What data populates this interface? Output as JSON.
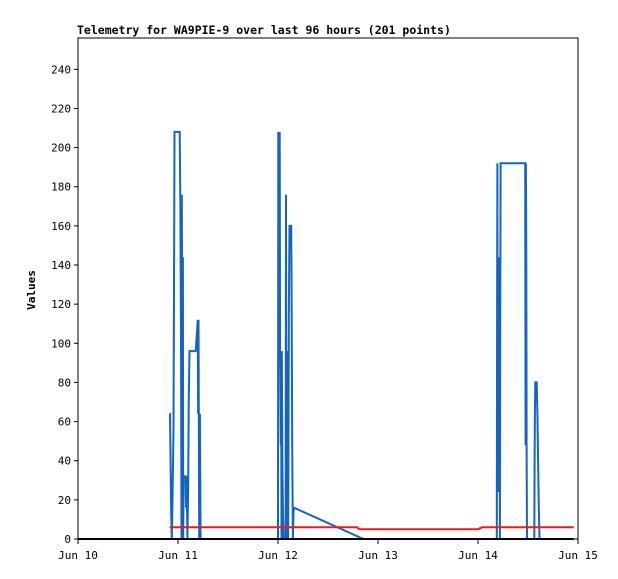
{
  "chart_data": {
    "type": "line",
    "title": "Telemetry for WA9PIE-9 over last 96 hours (201 points)",
    "xlabel": "",
    "ylabel": "Values",
    "xlim": [
      "2018-06-10T00:00",
      "2018-06-15T00:00"
    ],
    "ylim": [
      0,
      256
    ],
    "y_ticks": [
      0,
      20,
      40,
      60,
      80,
      100,
      120,
      140,
      160,
      180,
      200,
      220,
      240
    ],
    "x_ticks": [
      {
        "label": "Jun 10",
        "t": "2018-06-10T00:00"
      },
      {
        "label": "Jun 11",
        "t": "2018-06-11T00:00"
      },
      {
        "label": "Jun 12",
        "t": "2018-06-12T00:00"
      },
      {
        "label": "Jun 13",
        "t": "2018-06-13T00:00"
      },
      {
        "label": "Jun 14",
        "t": "2018-06-14T00:00"
      },
      {
        "label": "Jun 15",
        "t": "2018-06-15T00:00"
      }
    ],
    "grid": false,
    "legend": "none",
    "colors": {
      "blue": "#1565c0",
      "red": "#e02020",
      "black": "#000000",
      "frame": "#000000"
    },
    "series": [
      {
        "color": "#1565c0",
        "points": [
          [
            "2018-06-10T22:00",
            64
          ],
          [
            "2018-06-10T22:05",
            64
          ],
          [
            "2018-06-10T22:10",
            48
          ],
          [
            "2018-06-10T22:20",
            16
          ],
          [
            "2018-06-10T22:30",
            0
          ],
          [
            "2018-06-10T22:40",
            16
          ],
          [
            "2018-06-10T22:55",
            56
          ],
          [
            "2018-06-10T23:05",
            156
          ],
          [
            "2018-06-10T23:10",
            208
          ],
          [
            "2018-06-11T00:25",
            208
          ],
          [
            "2018-06-11T00:35",
            168
          ],
          [
            "2018-06-11T00:45",
            88
          ],
          [
            "2018-06-11T00:50",
            0
          ],
          [
            "2018-06-11T00:55",
            176
          ],
          [
            "2018-06-11T01:05",
            64
          ],
          [
            "2018-06-11T01:10",
            144
          ],
          [
            "2018-06-11T01:15",
            0
          ],
          [
            "2018-06-11T01:20",
            32
          ],
          [
            "2018-06-11T01:50",
            32
          ],
          [
            "2018-06-11T01:55",
            16
          ],
          [
            "2018-06-11T02:00",
            24
          ],
          [
            "2018-06-11T02:05",
            32
          ],
          [
            "2018-06-11T02:15",
            0
          ],
          [
            "2018-06-11T02:25",
            24
          ],
          [
            "2018-06-11T02:35",
            72
          ],
          [
            "2018-06-11T02:45",
            96
          ],
          [
            "2018-06-11T04:15",
            96
          ],
          [
            "2018-06-11T04:45",
            112
          ],
          [
            "2018-06-11T04:50",
            64
          ],
          [
            "2018-06-11T04:55",
            112
          ],
          [
            "2018-06-11T05:05",
            0
          ],
          [
            "2018-06-11T05:15",
            64
          ],
          [
            "2018-06-11T05:25",
            0
          ],
          [
            "2018-06-11T05:55",
            0
          ],
          [
            "2018-06-11T06:00",
            0
          ],
          [
            "2018-06-11T06:10",
            0
          ],
          [
            "2018-06-11T06:20",
            0
          ],
          [
            "2018-06-11T06:30",
            0
          ],
          [
            "2018-06-11T06:40",
            0
          ],
          [
            "2018-06-11T06:50",
            0
          ],
          [
            "2018-06-11T07:00",
            0
          ],
          [
            "2018-06-11T07:10",
            0
          ],
          [
            "2018-06-11T07:20",
            0
          ],
          [
            "2018-06-11T07:30",
            0
          ],
          [
            "2018-06-11T07:40",
            0
          ],
          [
            "2018-06-11T07:50",
            0
          ],
          [
            "2018-06-11T08:00",
            0
          ],
          [
            "2018-06-11T08:10",
            0
          ],
          [
            "2018-06-11T08:20",
            0
          ],
          [
            "2018-06-11T08:30",
            0
          ],
          [
            "2018-06-11T08:40",
            0
          ],
          [
            "2018-06-11T08:50",
            0
          ],
          [
            "2018-06-11T09:00",
            0
          ],
          [
            "2018-06-11T09:10",
            0
          ],
          [
            "2018-06-11T09:20",
            0
          ],
          [
            "2018-06-11T09:30",
            0
          ],
          [
            "2018-06-11T09:40",
            0
          ],
          [
            "2018-06-11T09:50",
            0
          ],
          [
            "2018-06-11T10:00",
            0
          ],
          [
            "2018-06-11T10:10",
            0
          ],
          [
            "2018-06-11T10:20",
            0
          ],
          [
            "2018-06-11T10:30",
            0
          ],
          [
            "2018-06-11T10:40",
            0
          ],
          [
            "2018-06-11T10:50",
            0
          ],
          [
            "2018-06-11T11:00",
            0
          ],
          [
            "2018-06-11T11:10",
            0
          ],
          [
            "2018-06-11T11:20",
            0
          ],
          [
            "2018-06-11T11:30",
            0
          ],
          [
            "2018-06-11T11:40",
            0
          ],
          [
            "2018-06-11T11:50",
            0
          ]
        ]
      },
      {
        "color": "#1565c0",
        "points": [
          [
            "2018-06-11T12:00",
            0
          ],
          [
            "2018-06-11T12:10",
            0
          ],
          [
            "2018-06-11T12:20",
            0
          ],
          [
            "2018-06-11T12:30",
            0
          ],
          [
            "2018-06-11T12:40",
            0
          ],
          [
            "2018-06-11T12:50",
            0
          ],
          [
            "2018-06-11T13:00",
            0
          ],
          [
            "2018-06-11T13:10",
            0
          ],
          [
            "2018-06-11T13:20",
            0
          ],
          [
            "2018-06-11T13:30",
            0
          ],
          [
            "2018-06-11T13:40",
            0
          ],
          [
            "2018-06-11T13:50",
            0
          ],
          [
            "2018-06-11T14:00",
            0
          ],
          [
            "2018-06-11T14:10",
            0
          ],
          [
            "2018-06-11T14:20",
            0
          ],
          [
            "2018-06-11T14:30",
            0
          ],
          [
            "2018-06-11T14:40",
            0
          ],
          [
            "2018-06-11T14:50",
            0
          ],
          [
            "2018-06-11T15:00",
            0
          ],
          [
            "2018-06-11T15:10",
            0
          ],
          [
            "2018-06-11T15:20",
            0
          ],
          [
            "2018-06-11T15:30",
            0
          ],
          [
            "2018-06-11T15:40",
            0
          ],
          [
            "2018-06-11T15:50",
            0
          ],
          [
            "2018-06-11T16:00",
            0
          ],
          [
            "2018-06-11T16:10",
            0
          ],
          [
            "2018-06-11T16:20",
            0
          ],
          [
            "2018-06-11T16:30",
            0
          ],
          [
            "2018-06-11T16:40",
            0
          ],
          [
            "2018-06-11T16:50",
            0
          ],
          [
            "2018-06-11T17:00",
            0
          ],
          [
            "2018-06-11T17:10",
            0
          ],
          [
            "2018-06-11T17:20",
            0
          ],
          [
            "2018-06-11T17:30",
            0
          ],
          [
            "2018-06-11T17:40",
            0
          ],
          [
            "2018-06-11T17:50",
            0
          ],
          [
            "2018-06-11T18:00",
            0
          ],
          [
            "2018-06-11T18:10",
            0
          ],
          [
            "2018-06-11T18:20",
            0
          ],
          [
            "2018-06-11T18:30",
            0
          ],
          [
            "2018-06-11T18:40",
            0
          ],
          [
            "2018-06-11T18:50",
            0
          ],
          [
            "2018-06-11T19:00",
            0
          ],
          [
            "2018-06-11T19:10",
            0
          ],
          [
            "2018-06-11T19:20",
            0
          ],
          [
            "2018-06-11T19:30",
            0
          ],
          [
            "2018-06-11T19:40",
            0
          ],
          [
            "2018-06-11T19:50",
            0
          ],
          [
            "2018-06-11T20:00",
            0
          ],
          [
            "2018-06-11T20:10",
            0
          ],
          [
            "2018-06-11T20:20",
            0
          ],
          [
            "2018-06-11T20:30",
            0
          ],
          [
            "2018-06-11T20:40",
            0
          ],
          [
            "2018-06-11T20:50",
            0
          ],
          [
            "2018-06-11T21:00",
            0
          ],
          [
            "2018-06-11T21:10",
            0
          ],
          [
            "2018-06-11T21:20",
            0
          ],
          [
            "2018-06-11T21:30",
            0
          ],
          [
            "2018-06-11T21:40",
            0
          ],
          [
            "2018-06-11T21:50",
            0
          ],
          [
            "2018-06-11T22:00",
            0
          ],
          [
            "2018-06-11T22:10",
            0
          ],
          [
            "2018-06-11T22:20",
            0
          ],
          [
            "2018-06-11T22:30",
            0
          ],
          [
            "2018-06-11T22:40",
            0
          ],
          [
            "2018-06-11T22:50",
            0
          ],
          [
            "2018-06-11T23:00",
            0
          ],
          [
            "2018-06-11T23:10",
            0
          ],
          [
            "2018-06-11T23:20",
            0
          ],
          [
            "2018-06-11T23:30",
            0
          ],
          [
            "2018-06-11T23:40",
            0
          ],
          [
            "2018-06-11T23:50",
            0
          ],
          [
            "2018-06-11T23:55",
            0
          ],
          [
            "2018-06-12T00:00",
            0
          ],
          [
            "2018-06-12T00:05",
            208
          ],
          [
            "2018-06-12T00:10",
            176
          ],
          [
            "2018-06-12T00:15",
            208
          ],
          [
            "2018-06-12T00:20",
            128
          ],
          [
            "2018-06-12T00:25",
            208
          ],
          [
            "2018-06-12T00:30",
            96
          ],
          [
            "2018-06-12T00:40",
            48
          ],
          [
            "2018-06-12T00:45",
            96
          ],
          [
            "2018-06-12T00:50",
            0
          ],
          [
            "2018-06-12T00:55",
            96
          ],
          [
            "2018-06-12T01:00",
            56
          ],
          [
            "2018-06-12T01:05",
            32
          ],
          [
            "2018-06-12T01:10",
            16
          ],
          [
            "2018-06-12T01:20",
            0
          ],
          [
            "2018-06-12T01:50",
            0
          ],
          [
            "2018-06-12T01:55",
            176
          ],
          [
            "2018-06-12T02:00",
            40
          ],
          [
            "2018-06-12T02:05",
            80
          ],
          [
            "2018-06-12T02:10",
            0
          ],
          [
            "2018-06-12T02:15",
            80
          ],
          [
            "2018-06-12T02:20",
            96
          ],
          [
            "2018-06-12T02:25",
            0
          ],
          [
            "2018-06-12T02:30",
            32
          ],
          [
            "2018-06-12T02:35",
            112
          ],
          [
            "2018-06-12T02:45",
            160
          ],
          [
            "2018-06-12T03:10",
            160
          ],
          [
            "2018-06-12T03:15",
            136
          ],
          [
            "2018-06-12T03:20",
            88
          ],
          [
            "2018-06-12T03:25",
            48
          ],
          [
            "2018-06-12T03:35",
            0
          ],
          [
            "2018-06-12T03:45",
            16
          ],
          [
            "2018-06-12T03:50",
            16
          ],
          [
            "2018-06-12T20:30",
            0
          ]
        ]
      },
      {
        "color": "#1565c0",
        "points": [
          [
            "2018-06-14T04:30",
            0
          ],
          [
            "2018-06-14T04:35",
            120
          ],
          [
            "2018-06-14T04:40",
            192
          ],
          [
            "2018-06-14T04:45",
            24
          ],
          [
            "2018-06-14T04:50",
            64
          ],
          [
            "2018-06-14T04:55",
            144
          ],
          [
            "2018-06-14T05:00",
            40
          ],
          [
            "2018-06-14T05:05",
            112
          ],
          [
            "2018-06-14T05:10",
            144
          ],
          [
            "2018-06-14T05:15",
            0
          ],
          [
            "2018-06-14T05:20",
            96
          ],
          [
            "2018-06-14T05:25",
            192
          ],
          [
            "2018-06-14T11:20",
            192
          ],
          [
            "2018-06-14T11:25",
            48
          ],
          [
            "2018-06-14T11:30",
            192
          ],
          [
            "2018-06-14T11:35",
            144
          ],
          [
            "2018-06-14T11:40",
            48
          ],
          [
            "2018-06-14T11:45",
            0
          ],
          [
            "2018-06-14T13:30",
            0
          ],
          [
            "2018-06-14T13:35",
            40
          ],
          [
            "2018-06-14T13:40",
            64
          ],
          [
            "2018-06-14T13:45",
            80
          ],
          [
            "2018-06-14T14:05",
            80
          ],
          [
            "2018-06-14T14:15",
            64
          ],
          [
            "2018-06-14T14:25",
            40
          ],
          [
            "2018-06-14T14:35",
            16
          ],
          [
            "2018-06-14T14:45",
            0
          ]
        ]
      },
      {
        "color": "#e02020",
        "points": [
          [
            "2018-06-10T22:00",
            6
          ],
          [
            "2018-06-12T19:00",
            6
          ],
          [
            "2018-06-12T19:30",
            5
          ],
          [
            "2018-06-14T00:00",
            5
          ],
          [
            "2018-06-14T01:00",
            6
          ],
          [
            "2018-06-14T23:00",
            6
          ]
        ]
      },
      {
        "color": "#000000",
        "points": [
          [
            "2018-06-10T00:00",
            0
          ],
          [
            "2018-06-14T23:00",
            0
          ]
        ]
      }
    ]
  }
}
